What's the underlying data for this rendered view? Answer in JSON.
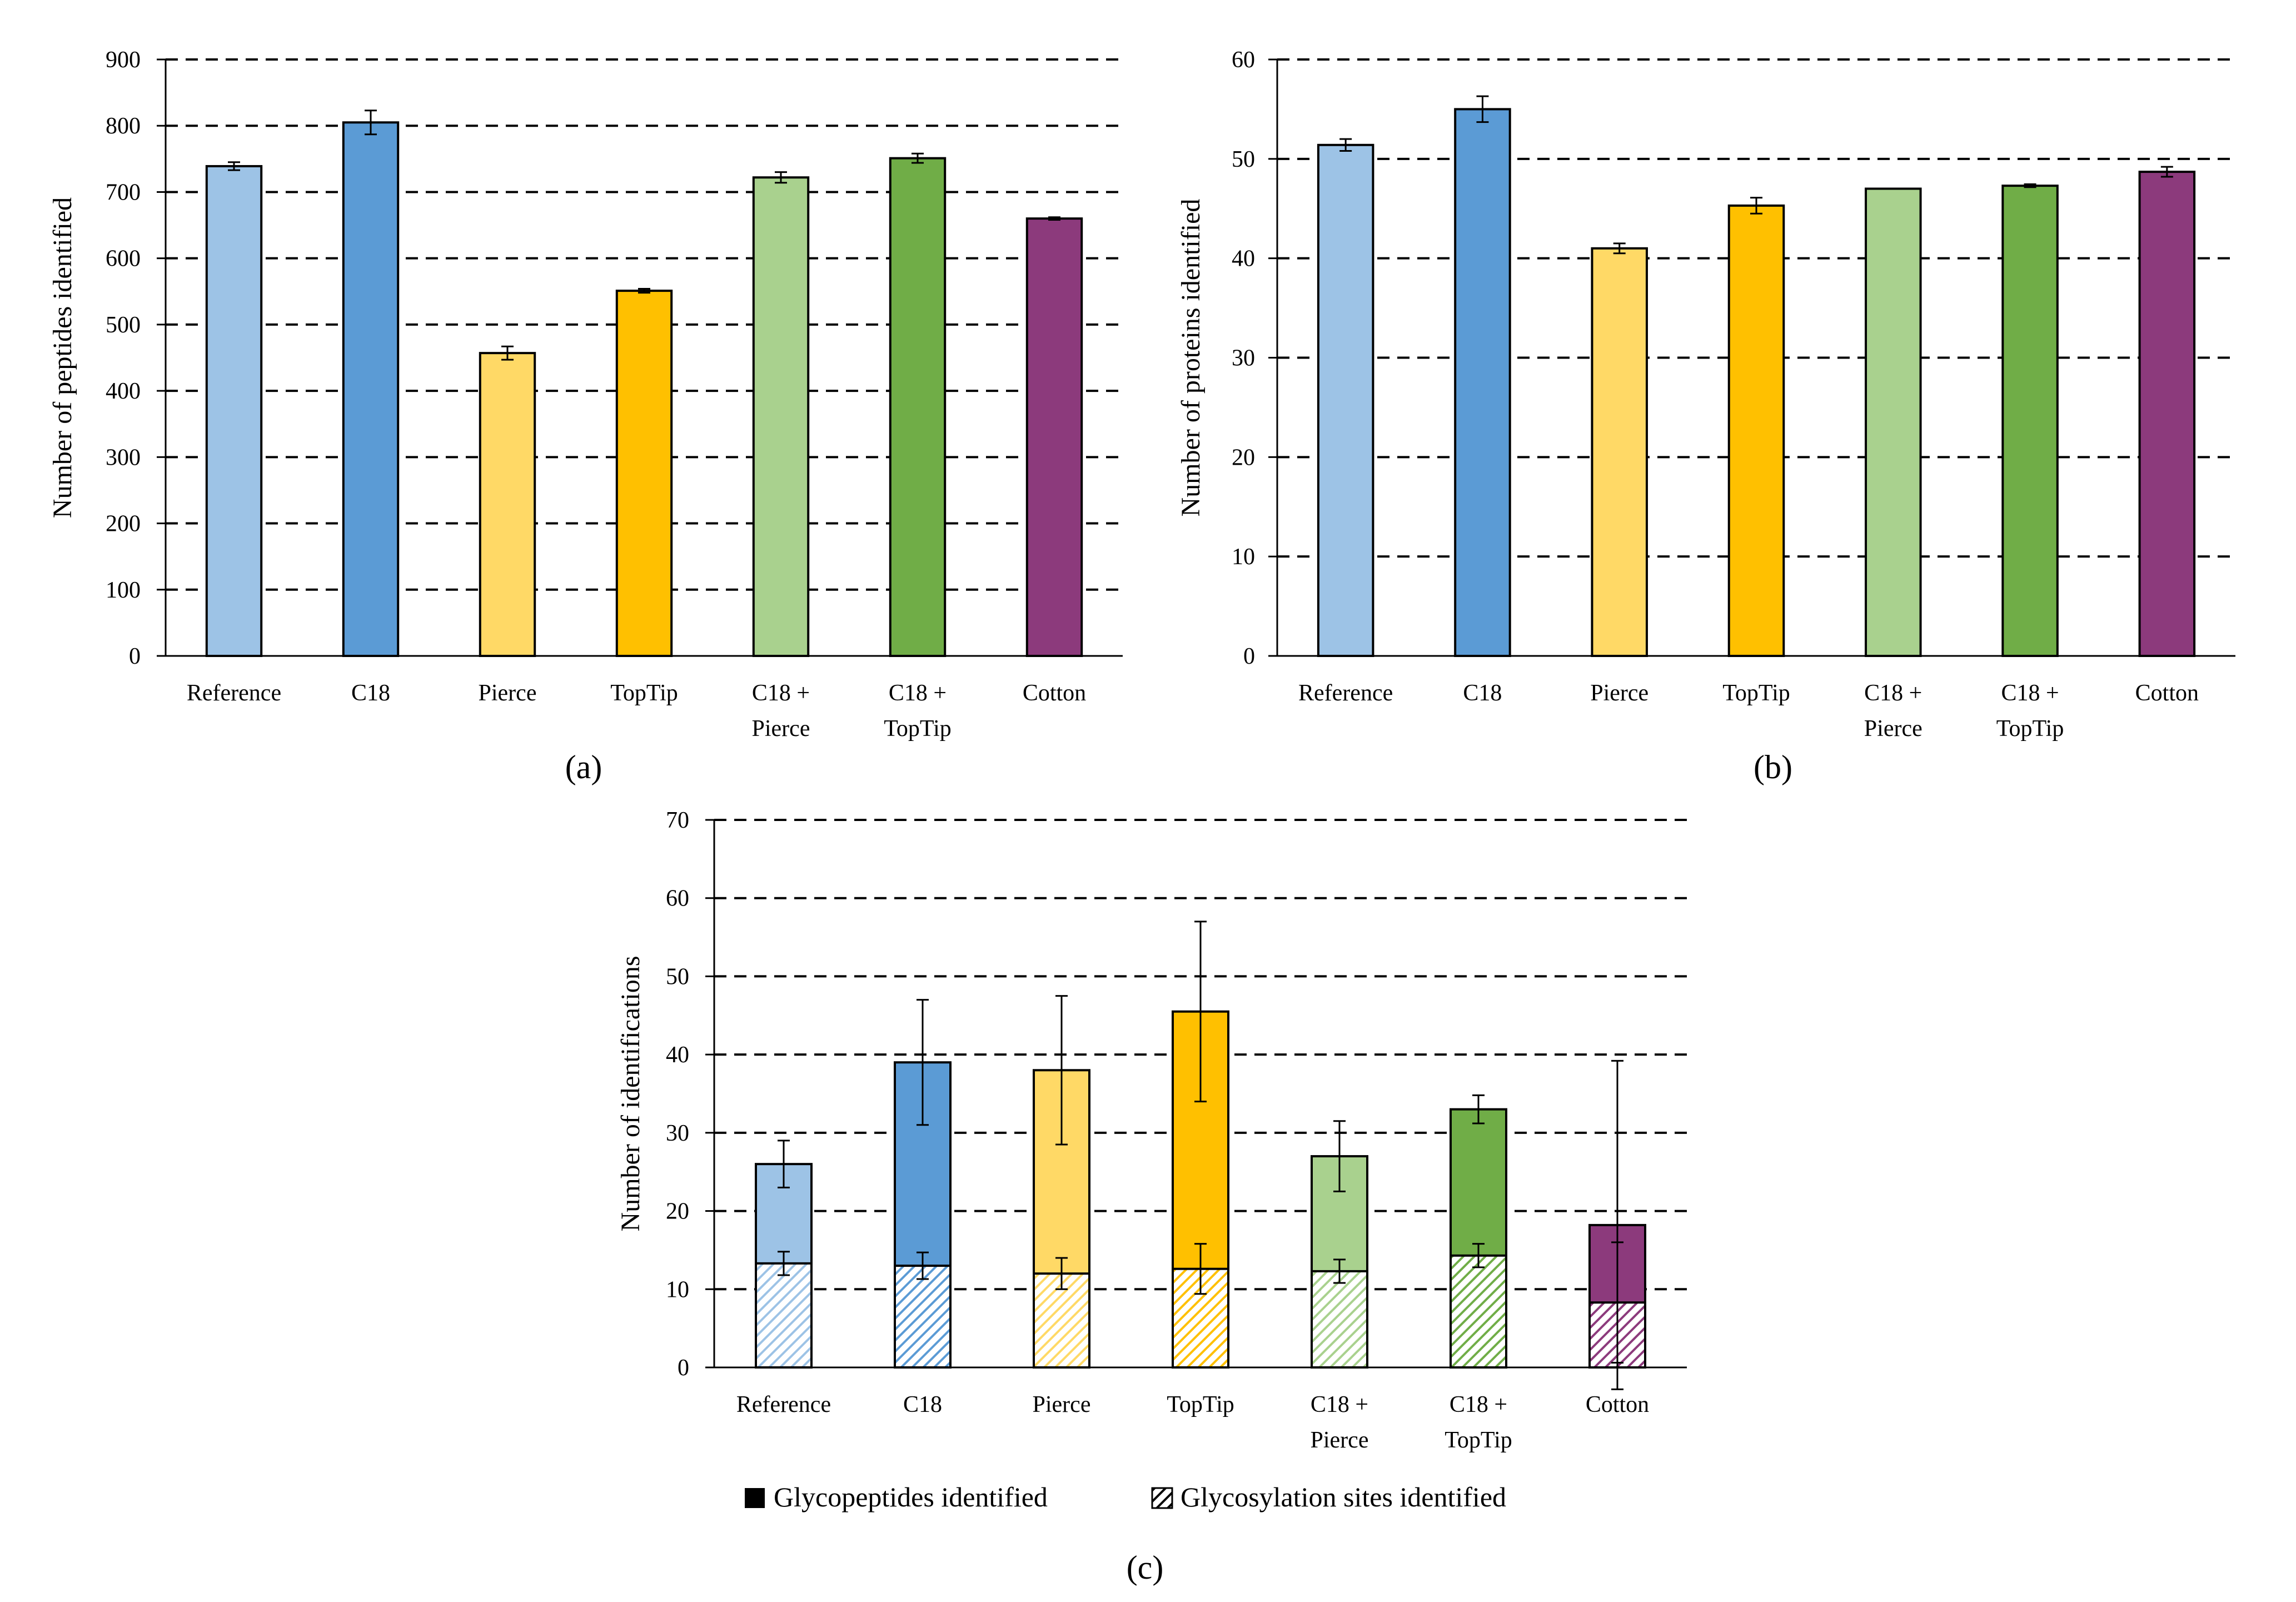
{
  "chart_data": [
    {
      "panel": "a",
      "type": "bar",
      "panel_label": "(a)",
      "ylabel": "Number of peptides identified",
      "xlabel": "",
      "ylim": [
        0,
        900
      ],
      "yticks": [
        0,
        100,
        200,
        300,
        400,
        500,
        600,
        700,
        800,
        900
      ],
      "grid": "dashed horizontal",
      "categories": [
        [
          "Reference"
        ],
        [
          "C18"
        ],
        [
          "Pierce"
        ],
        [
          "TopTip"
        ],
        [
          "C18 +",
          "Pierce"
        ],
        [
          "C18 +",
          "TopTip"
        ],
        [
          "Cotton"
        ]
      ],
      "values": [
        739,
        805,
        457,
        551,
        722,
        751,
        660
      ],
      "errors": [
        6,
        18,
        10,
        3,
        8,
        7,
        2
      ],
      "colors": [
        "#9dc3e6",
        "#5b9bd5",
        "#ffd966",
        "#ffc000",
        "#a9d18e",
        "#70ad47",
        "#8c3a7c"
      ]
    },
    {
      "panel": "b",
      "type": "bar",
      "panel_label": "(b)",
      "ylabel": "Number of proteins identified",
      "xlabel": "",
      "ylim": [
        0,
        60
      ],
      "yticks": [
        0,
        10,
        20,
        30,
        40,
        50,
        60
      ],
      "grid": "dashed horizontal",
      "categories": [
        [
          "Reference"
        ],
        [
          "C18"
        ],
        [
          "Pierce"
        ],
        [
          "TopTip"
        ],
        [
          "C18 +",
          "Pierce"
        ],
        [
          "C18 +",
          "TopTip"
        ],
        [
          "Cotton"
        ]
      ],
      "values": [
        51.4,
        55,
        41,
        45.3,
        47,
        47.3,
        48.7
      ],
      "errors": [
        0.6,
        1.3,
        0.5,
        0.8,
        0,
        0.15,
        0.5
      ],
      "colors": [
        "#9dc3e6",
        "#5b9bd5",
        "#ffd966",
        "#ffc000",
        "#a9d18e",
        "#70ad47",
        "#8c3a7c"
      ]
    },
    {
      "panel": "c",
      "type": "bar",
      "panel_label": "(c)",
      "ylabel": "Number of identifications",
      "xlabel": "",
      "ylim": [
        0,
        70
      ],
      "yticks": [
        0,
        10,
        20,
        30,
        40,
        50,
        60,
        70
      ],
      "grid": "dashed horizontal",
      "categories": [
        [
          "Reference"
        ],
        [
          "C18"
        ],
        [
          "Pierce"
        ],
        [
          "TopTip"
        ],
        [
          "C18 +",
          "Pierce"
        ],
        [
          "C18 +",
          "TopTip"
        ],
        [
          "Cotton"
        ]
      ],
      "colors": [
        "#9dc3e6",
        "#5b9bd5",
        "#ffd966",
        "#ffc000",
        "#a9d18e",
        "#70ad47",
        "#8c3a7c"
      ],
      "series": [
        {
          "name": "Glycopeptides identified",
          "pattern": "solid",
          "values": [
            26,
            39,
            38,
            45.5,
            27,
            33,
            18.2
          ],
          "errors": [
            3,
            8,
            9.5,
            11.5,
            4.5,
            1.8,
            21
          ]
        },
        {
          "name": "Glycosylation sites identified",
          "pattern": "hatched",
          "values": [
            13.3,
            13,
            12,
            12.6,
            12.3,
            14.3,
            8.3
          ],
          "errors": [
            1.5,
            1.7,
            2,
            3.2,
            1.5,
            1.5,
            7.7
          ]
        }
      ],
      "legend": "bottom"
    }
  ]
}
